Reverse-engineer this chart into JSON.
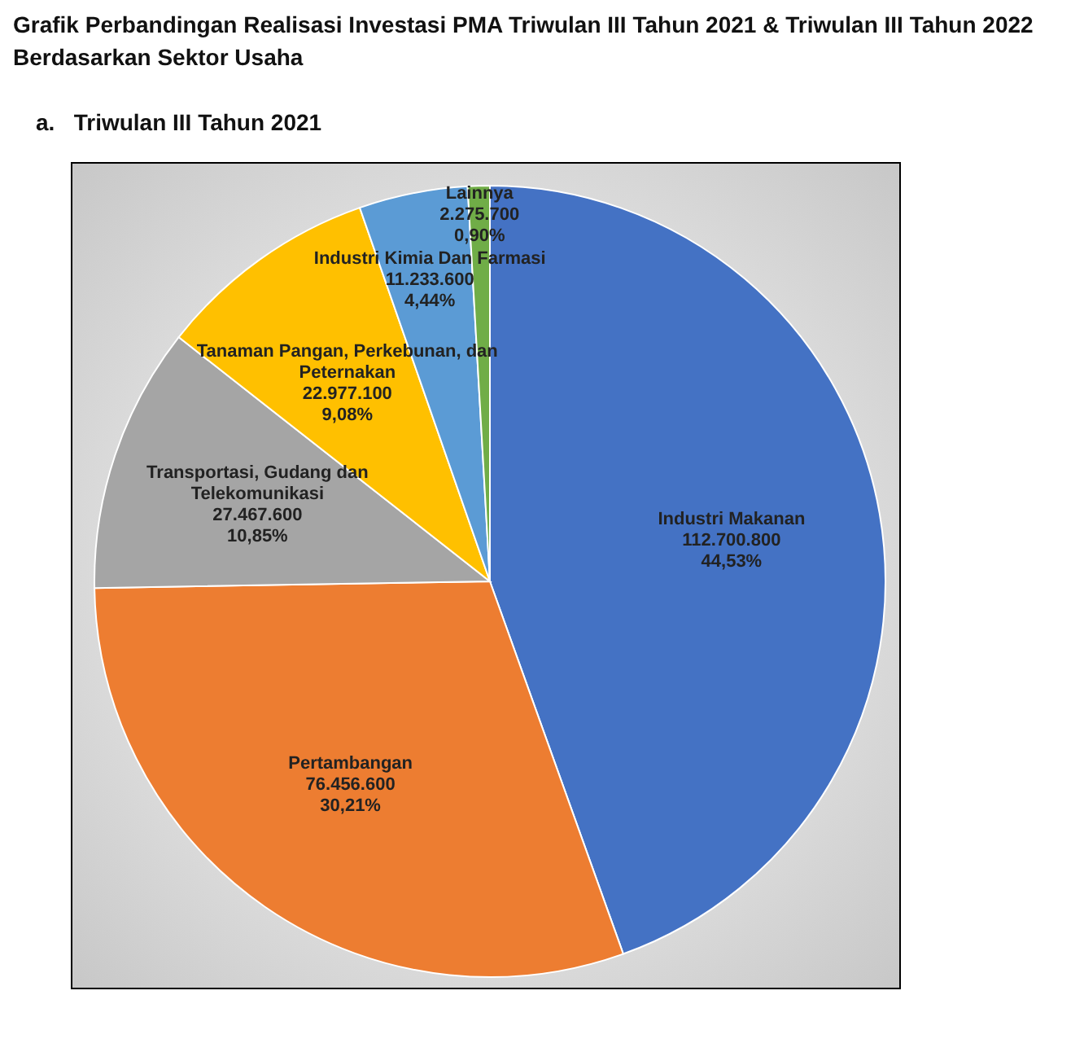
{
  "chart_data": {
    "type": "pie",
    "title": "Grafik Perbandingan Realisasi Investasi PMA Triwulan III Tahun 2021 & Triwulan III Tahun 2022\nBerdasarkan Sektor Usaha",
    "subtitle": "a.   Triwulan III Tahun 2021",
    "categories": [
      "Industri Makanan",
      "Pertambangan",
      "Transportasi, Gudang dan Telekomunikasi",
      "Tanaman Pangan, Perkebunan, dan Peternakan",
      "Industri Kimia Dan Farmasi",
      "Lainnya"
    ],
    "values": [
      112700800,
      76456600,
      27467600,
      22977100,
      11233600,
      2275700
    ],
    "colors": [
      "#4472c4",
      "#ed7d31",
      "#a5a5a5",
      "#ffc000",
      "#5b9bd5",
      "#70ad47"
    ],
    "value_labels": [
      "112.700.800\n44,53%",
      "76.456.600\n30,21%",
      "27.467.600\n10,85%",
      "22.977.100\n9,08%",
      "11.233.600\n4,44%",
      "2.275.700\n0,90%"
    ]
  }
}
